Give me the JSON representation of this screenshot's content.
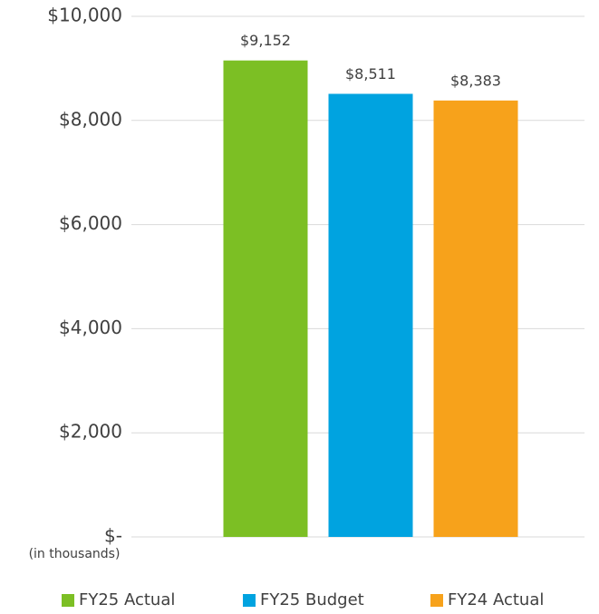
{
  "chart_data": {
    "type": "bar",
    "categories": [
      null
    ],
    "series": [
      {
        "name": "FY25 Actual",
        "color": "#7cbf24",
        "values": [
          9152
        ],
        "value_labels": [
          "$9,152"
        ]
      },
      {
        "name": "FY25 Budget",
        "color": "#00a3e0",
        "values": [
          8511
        ],
        "value_labels": [
          "$8,511"
        ]
      },
      {
        "name": "FY24 Actual",
        "color": "#f7a21b",
        "values": [
          8383
        ],
        "value_labels": [
          "$8,383"
        ]
      }
    ],
    "ylim": [
      0,
      10000
    ],
    "yticks": [
      {
        "value": 0,
        "label": "$-"
      },
      {
        "value": 2000,
        "label": "$2,000"
      },
      {
        "value": 4000,
        "label": "$4,000"
      },
      {
        "value": 6000,
        "label": "$6,000"
      },
      {
        "value": 8000,
        "label": "$8,000"
      },
      {
        "value": 10000,
        "label": "$10,000"
      }
    ],
    "annotation": "(in thousands)",
    "grid": true,
    "legend": "bottom"
  }
}
